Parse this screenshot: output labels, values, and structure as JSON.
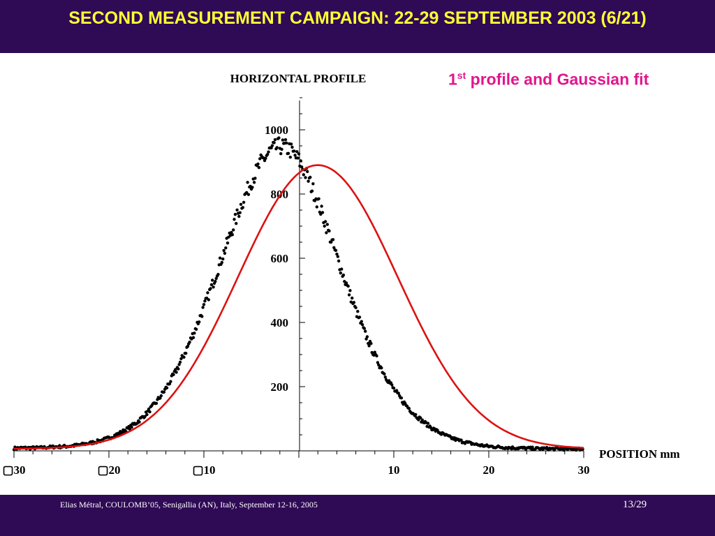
{
  "slide": {
    "title": "SECOND MEASUREMENT CAMPAIGN: 22-29 SEPTEMBER 2003 (6/21)",
    "subtitle_main": "1",
    "subtitle_sup": "st",
    "subtitle_rest": " profile and Gaussian fit",
    "footer": "Elias Métral, COULOMB’05, Senigallia (AN), Italy, September 12-16, 2005",
    "page": "13/29"
  },
  "colors": {
    "bar_bg": "#2f0a55",
    "title": "#ffff33",
    "subtitle": "#e0168c",
    "fit_line": "#dd1111",
    "points": "#000000"
  },
  "chart_data": {
    "type": "scatter",
    "title": "HORIZONTAL  PROFILE",
    "xlabel": "POSITION   mm",
    "ylabel": "",
    "xlim": [
      -30,
      30
    ],
    "ylim": [
      0,
      1100
    ],
    "x_tick_labels": [
      {
        "value": -30,
        "label": "▢30"
      },
      {
        "value": -20,
        "label": "▢20"
      },
      {
        "value": -10,
        "label": "▢10"
      },
      {
        "value": 10,
        "label": "10"
      },
      {
        "value": 20,
        "label": "20"
      },
      {
        "value": 30,
        "label": "30"
      }
    ],
    "y_tick_labels": [
      {
        "value": 200,
        "label": "200"
      },
      {
        "value": 400,
        "label": "400"
      },
      {
        "value": 600,
        "label": "600"
      },
      {
        "value": 800,
        "label": "800"
      },
      {
        "value": 1000,
        "label": "1000"
      }
    ],
    "grid": false,
    "series": [
      {
        "kind": "points",
        "x": [
          -30,
          -29,
          -28,
          -27,
          -26,
          -25,
          -24,
          -23,
          -22,
          -21,
          -20,
          -19,
          -18,
          -17,
          -16,
          -15,
          -14,
          -13,
          -12,
          -11,
          -10,
          -9,
          -8,
          -7,
          -6,
          -5,
          -4,
          -3,
          -2,
          -1,
          0,
          1,
          2,
          3,
          4,
          5,
          6,
          7,
          8,
          9,
          10,
          11,
          12,
          13,
          14,
          15,
          16,
          17,
          18,
          19,
          20,
          21,
          22,
          23,
          24,
          25,
          26,
          27,
          28,
          29,
          30
        ],
        "y": [
          8,
          9,
          9,
          10,
          12,
          13,
          15,
          19,
          24,
          31,
          40,
          53,
          69,
          90,
          118,
          152,
          194,
          245,
          305,
          372,
          446,
          526,
          609,
          692,
          771,
          840,
          897,
          935,
          950,
          940,
          905,
          848,
          775,
          692,
          605,
          519,
          437,
          363,
          297,
          240,
          192,
          152,
          119,
          93,
          71,
          54,
          41,
          31,
          24,
          18,
          14,
          12,
          10,
          9,
          8,
          7,
          7,
          6,
          6,
          6,
          6
        ]
      },
      {
        "kind": "fit",
        "name": "",
        "peak_x": 2,
        "peak_y": 890,
        "sigma": 8.4,
        "baseline": 6
      }
    ]
  }
}
